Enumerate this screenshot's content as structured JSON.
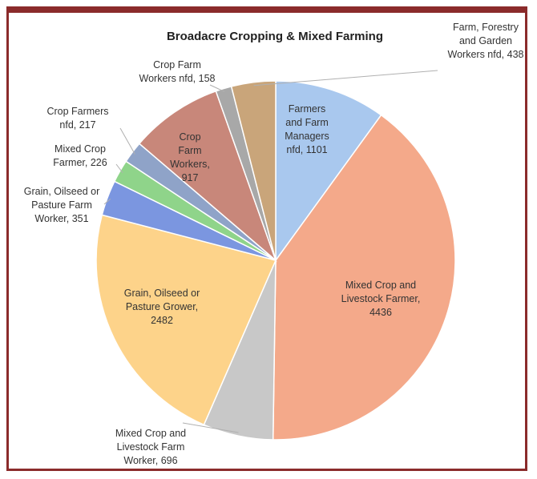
{
  "chart_data": {
    "type": "pie",
    "title": "Broadacre Cropping & Mixed Farming",
    "slices": [
      {
        "label": "Farmers and Farm Managers nfd, 1101",
        "category": "Farmers and Farm Managers nfd",
        "value": 1101,
        "color": "#a9c8ee"
      },
      {
        "label": "Mixed Crop and Livestock Farmer, 4436",
        "category": "Mixed Crop and Livestock Farmer",
        "value": 4436,
        "color": "#f4a98a"
      },
      {
        "label": "Mixed Crop and Livestock Farm Worker, 696",
        "category": "Mixed Crop and Livestock Farm Worker",
        "value": 696,
        "color": "#c8c8c8"
      },
      {
        "label": "Grain, Oilseed or Pasture Grower, 2482",
        "category": "Grain, Oilseed or Pasture Grower",
        "value": 2482,
        "color": "#fdd38a"
      },
      {
        "label": "Grain, Oilseed or Pasture Farm Worker, 351",
        "category": "Grain, Oilseed or Pasture Farm Worker",
        "value": 351,
        "color": "#7b96e0"
      },
      {
        "label": "Mixed Crop Farmer, 226",
        "category": "Mixed Crop Farmer",
        "value": 226,
        "color": "#8fd48a"
      },
      {
        "label": "Crop Farmers nfd, 217",
        "category": "Crop Farmers nfd",
        "value": 217,
        "color": "#8fa3c8"
      },
      {
        "label": "Crop Farm Workers, 917",
        "category": "Crop Farm Workers",
        "value": 917,
        "color": "#c8877a"
      },
      {
        "label": "Crop Farm Workers nfd, 158",
        "category": "Crop Farm Workers nfd",
        "value": 158,
        "color": "#a8a8a8"
      },
      {
        "label": "Farm, Forestry and Garden Workers nfd, 438",
        "category": "Farm, Forestry and Garden Workers nfd",
        "value": 438,
        "color": "#c9a57a"
      }
    ]
  }
}
